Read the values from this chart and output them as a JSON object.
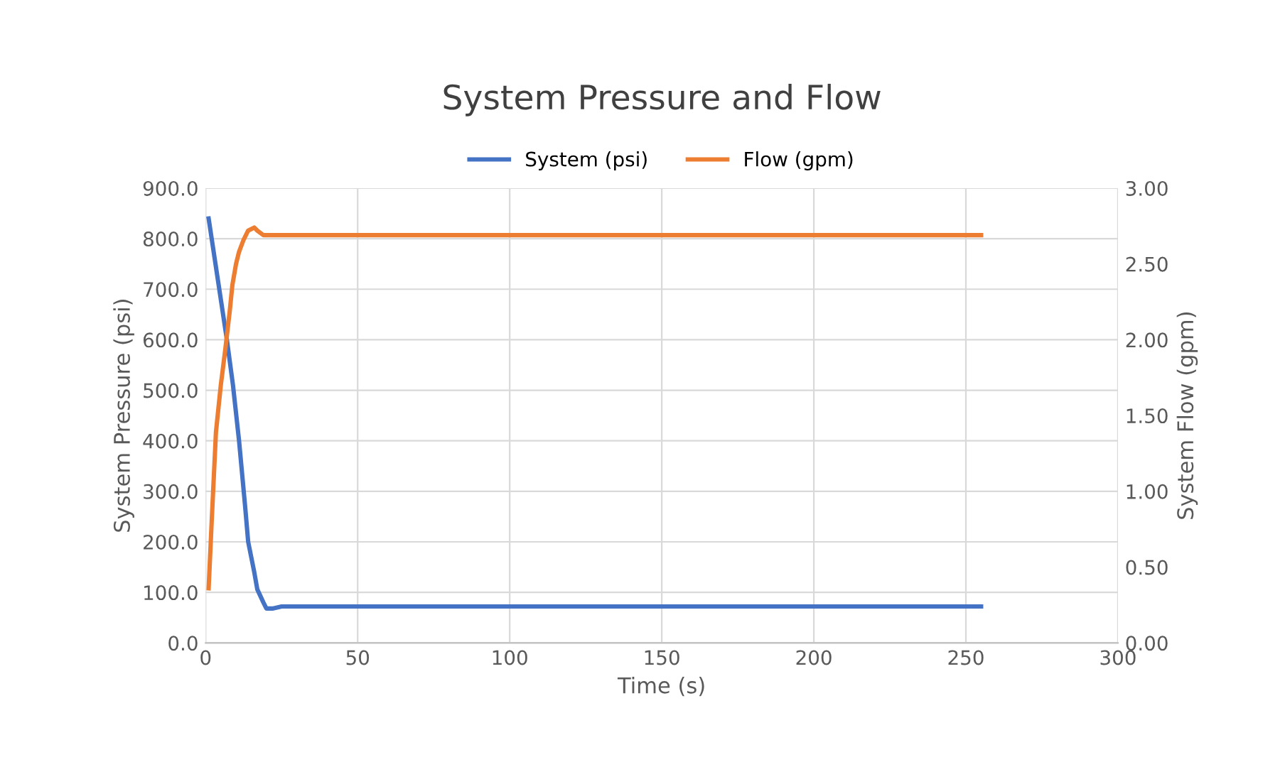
{
  "chart_data": {
    "type": "line",
    "title": "System Pressure and Flow",
    "xlabel": "Time (s)",
    "ylabel": "System Pressure (psi)",
    "y2label": "System Flow (gpm)",
    "xlim": [
      0,
      300
    ],
    "xticks": [
      0,
      50,
      100,
      150,
      200,
      250,
      300
    ],
    "ylim": [
      0,
      900
    ],
    "yticks": [
      {
        "value": 0,
        "label": "0.0"
      },
      {
        "value": 100,
        "label": "100.0"
      },
      {
        "value": 200,
        "label": "200.0"
      },
      {
        "value": 300,
        "label": "300.0"
      },
      {
        "value": 400,
        "label": "400.0"
      },
      {
        "value": 500,
        "label": "500.0"
      },
      {
        "value": 600,
        "label": "600.0"
      },
      {
        "value": 700,
        "label": "700.0"
      },
      {
        "value": 800,
        "label": "800.0"
      },
      {
        "value": 900,
        "label": "900.0"
      }
    ],
    "y2lim": [
      0,
      3
    ],
    "y2ticks": [
      {
        "value": 0,
        "label": "0.00"
      },
      {
        "value": 0.5,
        "label": "0.50"
      },
      {
        "value": 1,
        "label": "1.00"
      },
      {
        "value": 1.5,
        "label": "1.50"
      },
      {
        "value": 2,
        "label": "2.00"
      },
      {
        "value": 2.5,
        "label": "2.50"
      },
      {
        "value": 3,
        "label": "3.00"
      }
    ],
    "grid": true,
    "legend": "top",
    "marker": "none",
    "line_style": "solid",
    "series": [
      {
        "name": "System (psi)",
        "color": "#4472c4",
        "x": [
          1,
          4,
          7,
          9,
          11,
          13,
          14,
          16,
          17,
          19,
          20,
          22,
          25,
          30,
          50,
          100,
          150,
          200,
          255
        ],
        "values": [
          840,
          720,
          600,
          510,
          400,
          270,
          200,
          140,
          106,
          80,
          68,
          68,
          72,
          72,
          72,
          72,
          72,
          72,
          72
        ]
      },
      {
        "name": "Flow (gpm)",
        "color": "#ed7d31",
        "axis": "y2",
        "x": [
          1,
          2,
          3.4,
          5,
          6.5,
          8,
          8.8,
          10,
          11,
          12.5,
          14,
          16,
          17,
          19,
          25,
          50,
          100,
          150,
          200,
          255
        ],
        "values": [
          0.36,
          0.8,
          1.39,
          1.7,
          1.94,
          2.2,
          2.36,
          2.5,
          2.58,
          2.66,
          2.72,
          2.74,
          2.72,
          2.69,
          2.69,
          2.69,
          2.69,
          2.69,
          2.69,
          2.69
        ]
      }
    ]
  }
}
